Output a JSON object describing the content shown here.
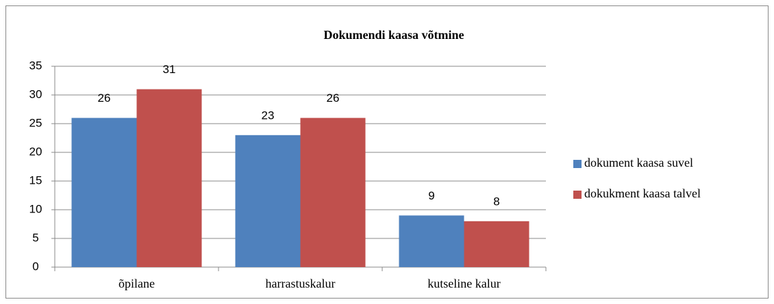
{
  "chart_data": {
    "type": "bar",
    "title": "Dokumendi kaasa võtmine",
    "categories": [
      "õpilane",
      "harrastuskalur",
      "kutseline kalur"
    ],
    "series": [
      {
        "name": "dokument kaasa suvel",
        "color": "#4f81bd",
        "values": [
          26,
          23,
          9
        ]
      },
      {
        "name": "dokukment kaasa talvel",
        "color": "#c0504d",
        "values": [
          31,
          26,
          8
        ]
      }
    ],
    "ylim": [
      0,
      35
    ],
    "yticks": [
      0,
      5,
      10,
      15,
      20,
      25,
      30,
      35
    ],
    "grid": true,
    "legend": "right"
  }
}
